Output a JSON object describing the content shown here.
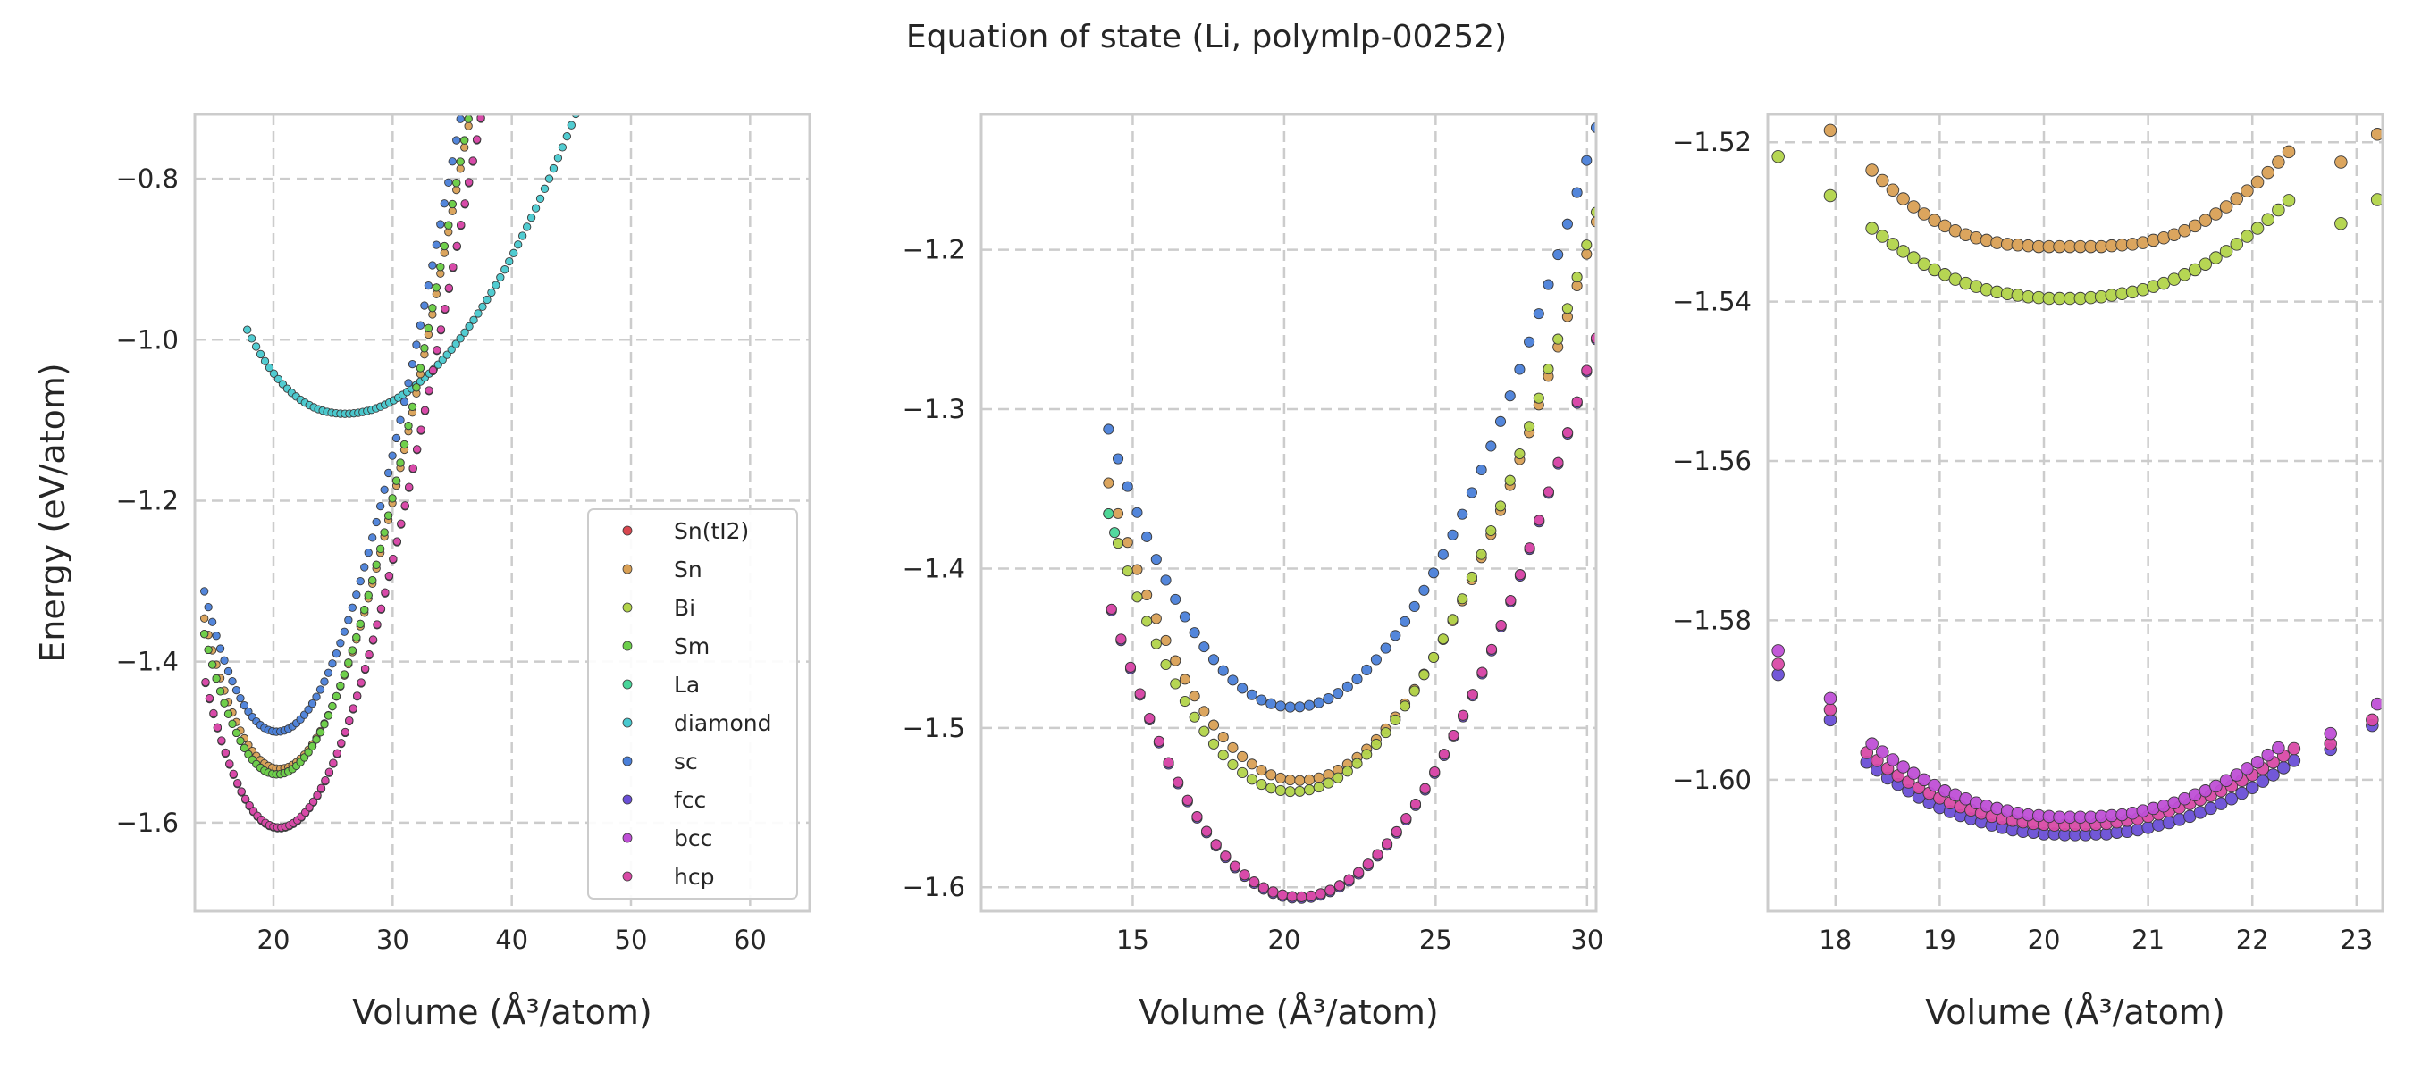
{
  "title": "Equation of state (Li, polymlp-00252)",
  "chart_data": [
    {
      "type": "scatter",
      "xlabel": "Volume (Å³/atom)",
      "ylabel": "Energy (eV/atom)",
      "xlim": [
        13.4,
        65.0
      ],
      "ylim": [
        -1.71,
        -0.72
      ],
      "xticks": [
        20,
        30,
        40,
        50,
        60
      ],
      "yticks": [
        -1.6,
        -1.4,
        -1.2,
        -1.0,
        -0.8
      ],
      "xticklabels": [
        "20",
        "30",
        "40",
        "50",
        "60"
      ],
      "yticklabels": [
        "−1.6",
        "−1.4",
        "−1.2",
        "−1.0",
        "−0.8"
      ],
      "grid": true,
      "legend": {
        "placement": "lower right",
        "entries": [
          {
            "name": "Sn(tI2)",
            "color": "#d9474f"
          },
          {
            "name": "Sn",
            "color": "#d9a055"
          },
          {
            "name": "Bi",
            "color": "#b2d44a"
          },
          {
            "name": "Sm",
            "color": "#6ccf4b"
          },
          {
            "name": "La",
            "color": "#48d69a"
          },
          {
            "name": "diamond",
            "color": "#48c9cf"
          },
          {
            "name": "sc",
            "color": "#4a7fd9"
          },
          {
            "name": "fcc",
            "color": "#6a4fd6"
          },
          {
            "name": "bcc",
            "color": "#bf4fd6"
          },
          {
            "name": "hcp",
            "color": "#d94aa6"
          }
        ]
      },
      "series": [
        {
          "name": "diamond",
          "color": "#48c9cf",
          "kind": "eos",
          "x0": 26.0,
          "e0": -1.092,
          "b": 0.001,
          "xmin": 17.8,
          "xmax": 64.0,
          "n": 125,
          "c": 2e-05,
          "k": 3
        },
        {
          "name": "sc",
          "color": "#4a7fd9",
          "kind": "eos",
          "x0": 20.3,
          "e0": -1.487,
          "b": 0.004,
          "xmin": 14.2,
          "xmax": 50.8,
          "n": 110,
          "c": 0.0011,
          "k": 6
        },
        {
          "name": "Sn",
          "color": "#d9a055",
          "kind": "eos",
          "x0": 20.5,
          "e0": -1.533,
          "b": 0.004,
          "xmin": 14.2,
          "xmax": 50.8,
          "n": 110,
          "c": 0.0011,
          "k": 6
        },
        {
          "name": "Bi",
          "color": "#b2d44a",
          "kind": "eos",
          "x0": 20.3,
          "e0": -1.54,
          "b": 0.004,
          "xmin": 14.2,
          "xmax": 50.8,
          "n": 110,
          "c": 0.0011,
          "k": 6
        },
        {
          "name": "Sm",
          "color": "#6ccf4b",
          "kind": "eos",
          "x0": 20.3,
          "e0": -1.54,
          "b": 0.004,
          "xmin": 14.2,
          "xmax": 50.8,
          "n": 110,
          "c": 0.0011,
          "k": 6
        },
        {
          "name": "fcc",
          "color": "#6a4fd6",
          "kind": "eos",
          "x0": 20.5,
          "e0": -1.607,
          "b": 0.004,
          "xmin": 14.3,
          "xmax": 50.8,
          "n": 110,
          "c": 0.0011,
          "k": 6
        },
        {
          "name": "bcc",
          "color": "#bf4fd6",
          "kind": "eos",
          "x0": 20.5,
          "e0": -1.606,
          "b": 0.004,
          "xmin": 14.3,
          "xmax": 50.8,
          "n": 110,
          "c": 0.0011,
          "k": 6
        },
        {
          "name": "hcp",
          "color": "#d94aa6",
          "kind": "eos",
          "x0": 20.5,
          "e0": -1.606,
          "b": 0.004,
          "xmin": 14.3,
          "xmax": 50.8,
          "n": 110,
          "c": 0.0011,
          "k": 6
        }
      ]
    },
    {
      "type": "scatter",
      "xlabel": "Volume (Å³/atom)",
      "ylabel": "",
      "xlim": [
        10.0,
        30.3
      ],
      "ylim": [
        -1.615,
        -1.115
      ],
      "xticks": [
        15,
        20,
        25,
        30
      ],
      "yticks": [
        -1.6,
        -1.5,
        -1.4,
        -1.3,
        -1.2
      ],
      "xticklabels": [
        "15",
        "20",
        "25",
        "30"
      ],
      "yticklabels": [
        "−1.6",
        "−1.5",
        "−1.4",
        "−1.3",
        "−1.2"
      ],
      "grid": true,
      "series": [
        {
          "name": "sc",
          "color": "#4a7fd9",
          "kind": "eos",
          "x0": 20.3,
          "e0": -1.487,
          "b": 0.004,
          "xmin": 14.2,
          "xmax": 30.3,
          "n": 52,
          "c": 0.0011,
          "k": 6
        },
        {
          "name": "Sn",
          "color": "#d9a055",
          "kind": "eos",
          "x0": 20.5,
          "e0": -1.533,
          "b": 0.004,
          "xmin": 14.2,
          "xmax": 30.3,
          "n": 52,
          "c": 0.0011,
          "k": 6
        },
        {
          "name": "Bi",
          "color": "#b2d44a",
          "kind": "eos",
          "x0": 20.3,
          "e0": -1.54,
          "b": 0.004,
          "xmin": 14.2,
          "xmax": 30.3,
          "n": 52,
          "c": 0.0011,
          "k": 6
        },
        {
          "name": "La",
          "color": "#48d69a",
          "kind": "eos",
          "x0": 20.3,
          "e0": -1.54,
          "b": 0.004,
          "xmin": 14.2,
          "xmax": 14.4,
          "n": 2,
          "c": 0.0011,
          "k": 6
        },
        {
          "name": "fcc",
          "color": "#6a4fd6",
          "kind": "eos",
          "x0": 20.5,
          "e0": -1.607,
          "b": 0.004,
          "xmin": 14.3,
          "xmax": 30.3,
          "n": 52,
          "c": 0.0011,
          "k": 6
        },
        {
          "name": "bcc",
          "color": "#bf4fd6",
          "kind": "eos",
          "x0": 20.5,
          "e0": -1.606,
          "b": 0.004,
          "xmin": 14.3,
          "xmax": 30.3,
          "n": 52,
          "c": 0.0011,
          "k": 6
        },
        {
          "name": "hcp",
          "color": "#d94aa6",
          "kind": "eos",
          "x0": 20.5,
          "e0": -1.606,
          "b": 0.004,
          "xmin": 14.3,
          "xmax": 30.3,
          "n": 52,
          "c": 0.0011,
          "k": 6
        }
      ]
    },
    {
      "type": "scatter",
      "xlabel": "Volume (Å³/atom)",
      "ylabel": "",
      "xlim": [
        17.35,
        23.25
      ],
      "ylim": [
        -1.6165,
        -1.5165
      ],
      "xticks": [
        18,
        19,
        20,
        21,
        22,
        23
      ],
      "yticks": [
        -1.6,
        -1.58,
        -1.56,
        -1.54,
        -1.52
      ],
      "xticklabels": [
        "18",
        "19",
        "20",
        "21",
        "22",
        "23"
      ],
      "yticklabels": [
        "−1.60",
        "−1.58",
        "−1.56",
        "−1.54",
        "−1.52"
      ],
      "grid": true,
      "series": [
        {
          "name": "Sn",
          "color": "#d9a055",
          "kind": "points",
          "x": [
            17.95,
            18.35,
            18.45,
            18.55,
            18.65,
            18.75,
            18.85,
            18.95,
            19.05,
            19.15,
            19.25,
            19.35,
            19.45,
            19.55,
            19.65,
            19.75,
            19.85,
            19.95,
            20.05,
            20.15,
            20.25,
            20.35,
            20.45,
            20.55,
            20.65,
            20.75,
            20.85,
            20.95,
            21.05,
            21.15,
            21.25,
            21.35,
            21.45,
            21.55,
            21.65,
            21.75,
            21.85,
            21.95,
            22.05,
            22.15,
            22.25,
            22.35,
            22.85,
            23.2
          ],
          "y": [
            -1.5185,
            -1.5235,
            -1.5248,
            -1.526,
            -1.5271,
            -1.5281,
            -1.529,
            -1.5298,
            -1.5305,
            -1.5311,
            -1.5316,
            -1.532,
            -1.5323,
            -1.5326,
            -1.5328,
            -1.5329,
            -1.533,
            -1.5331,
            -1.5331,
            -1.5331,
            -1.5331,
            -1.5331,
            -1.5331,
            -1.5331,
            -1.533,
            -1.5329,
            -1.5328,
            -1.5326,
            -1.5323,
            -1.532,
            -1.5316,
            -1.5311,
            -1.5305,
            -1.5298,
            -1.529,
            -1.5281,
            -1.5271,
            -1.5261,
            -1.525,
            -1.5238,
            -1.5225,
            -1.5212,
            -1.5225,
            -1.519
          ]
        },
        {
          "name": "Bi",
          "color": "#b2d44a",
          "kind": "points",
          "x": [
            17.45,
            17.95,
            18.35,
            18.45,
            18.55,
            18.65,
            18.75,
            18.85,
            18.95,
            19.05,
            19.15,
            19.25,
            19.35,
            19.45,
            19.55,
            19.65,
            19.75,
            19.85,
            19.95,
            20.05,
            20.15,
            20.25,
            20.35,
            20.45,
            20.55,
            20.65,
            20.75,
            20.85,
            20.95,
            21.05,
            21.15,
            21.25,
            21.35,
            21.45,
            21.55,
            21.65,
            21.75,
            21.85,
            21.95,
            22.05,
            22.15,
            22.25,
            22.35,
            22.85,
            23.2
          ],
          "y": [
            -1.5218,
            -1.5267,
            -1.5308,
            -1.5318,
            -1.5328,
            -1.5337,
            -1.5345,
            -1.5353,
            -1.536,
            -1.5366,
            -1.5372,
            -1.5377,
            -1.5381,
            -1.5385,
            -1.5388,
            -1.539,
            -1.5392,
            -1.5394,
            -1.5395,
            -1.5396,
            -1.5396,
            -1.5396,
            -1.5396,
            -1.5395,
            -1.5394,
            -1.5392,
            -1.539,
            -1.5388,
            -1.5385,
            -1.5381,
            -1.5377,
            -1.5372,
            -1.5366,
            -1.536,
            -1.5353,
            -1.5345,
            -1.5337,
            -1.5328,
            -1.5318,
            -1.5308,
            -1.5297,
            -1.5285,
            -1.5273,
            -1.5302,
            -1.5272
          ]
        },
        {
          "name": "fcc",
          "color": "#6a4fd6",
          "kind": "points",
          "x": [
            17.45,
            17.95,
            18.3,
            18.4,
            18.5,
            18.6,
            18.7,
            18.8,
            18.9,
            19.0,
            19.1,
            19.2,
            19.3,
            19.4,
            19.5,
            19.6,
            19.7,
            19.8,
            19.9,
            20.0,
            20.1,
            20.2,
            20.3,
            20.4,
            20.5,
            20.6,
            20.7,
            20.8,
            20.9,
            21.0,
            21.1,
            21.2,
            21.3,
            21.4,
            21.5,
            21.6,
            21.7,
            21.8,
            21.9,
            22.0,
            22.1,
            22.2,
            22.3,
            22.4,
            22.75,
            23.15
          ],
          "y": [
            -1.5868,
            -1.5925,
            -1.5978,
            -1.5988,
            -1.5998,
            -1.6006,
            -1.6014,
            -1.6022,
            -1.6029,
            -1.6035,
            -1.604,
            -1.6045,
            -1.6049,
            -1.6053,
            -1.6057,
            -1.606,
            -1.6063,
            -1.6065,
            -1.6066,
            -1.6068,
            -1.6068,
            -1.6069,
            -1.6069,
            -1.6069,
            -1.6068,
            -1.6068,
            -1.6066,
            -1.6065,
            -1.6063,
            -1.606,
            -1.6057,
            -1.6054,
            -1.605,
            -1.6046,
            -1.6041,
            -1.6036,
            -1.603,
            -1.6024,
            -1.6017,
            -1.601,
            -1.6002,
            -1.5994,
            -1.5985,
            -1.5976,
            -1.5962,
            -1.5932
          ]
        },
        {
          "name": "hcp",
          "color": "#d94aa6",
          "kind": "points",
          "x": [
            17.45,
            17.95,
            18.3,
            18.4,
            18.5,
            18.6,
            18.7,
            18.8,
            18.9,
            19.0,
            19.1,
            19.2,
            19.3,
            19.4,
            19.5,
            19.6,
            19.7,
            19.8,
            19.9,
            20.0,
            20.1,
            20.2,
            20.3,
            20.4,
            20.5,
            20.6,
            20.7,
            20.8,
            20.9,
            21.0,
            21.1,
            21.2,
            21.3,
            21.4,
            21.5,
            21.6,
            21.7,
            21.8,
            21.9,
            22.0,
            22.1,
            22.2,
            22.3,
            22.4,
            22.75,
            23.15
          ],
          "y": [
            -1.5855,
            -1.5912,
            -1.5966,
            -1.5976,
            -1.5986,
            -1.5995,
            -1.6003,
            -1.601,
            -1.6017,
            -1.6023,
            -1.6029,
            -1.6034,
            -1.6038,
            -1.6042,
            -1.6046,
            -1.6049,
            -1.6051,
            -1.6053,
            -1.6055,
            -1.6056,
            -1.6057,
            -1.6057,
            -1.6057,
            -1.6057,
            -1.6056,
            -1.6055,
            -1.6053,
            -1.6051,
            -1.6049,
            -1.6046,
            -1.6043,
            -1.6039,
            -1.6035,
            -1.603,
            -1.6025,
            -1.602,
            -1.6014,
            -1.6008,
            -1.6001,
            -1.5994,
            -1.5986,
            -1.5978,
            -1.597,
            -1.5961,
            -1.5955,
            -1.5925
          ]
        },
        {
          "name": "bcc",
          "color": "#bf4fd6",
          "kind": "points",
          "x": [
            17.45,
            17.95,
            18.35,
            18.45,
            18.55,
            18.65,
            18.75,
            18.85,
            18.95,
            19.05,
            19.15,
            19.25,
            19.35,
            19.45,
            19.55,
            19.65,
            19.75,
            19.85,
            19.95,
            20.05,
            20.15,
            20.25,
            20.35,
            20.45,
            20.55,
            20.65,
            20.75,
            20.85,
            20.95,
            21.05,
            21.15,
            21.25,
            21.35,
            21.45,
            21.55,
            21.65,
            21.75,
            21.85,
            21.95,
            22.05,
            22.15,
            22.25,
            22.75,
            23.2
          ],
          "y": [
            -1.5838,
            -1.5898,
            -1.5955,
            -1.5965,
            -1.5975,
            -1.5984,
            -1.5992,
            -1.6,
            -1.6007,
            -1.6014,
            -1.6019,
            -1.6024,
            -1.6029,
            -1.6033,
            -1.6036,
            -1.6039,
            -1.6042,
            -1.6044,
            -1.6045,
            -1.6046,
            -1.6047,
            -1.6047,
            -1.6047,
            -1.6047,
            -1.6046,
            -1.6045,
            -1.6044,
            -1.6042,
            -1.6039,
            -1.6036,
            -1.6033,
            -1.6029,
            -1.6024,
            -1.6019,
            -1.6014,
            -1.6008,
            -1.6001,
            -1.5994,
            -1.5986,
            -1.5978,
            -1.5969,
            -1.596,
            -1.5942,
            -1.5905
          ]
        }
      ]
    }
  ]
}
